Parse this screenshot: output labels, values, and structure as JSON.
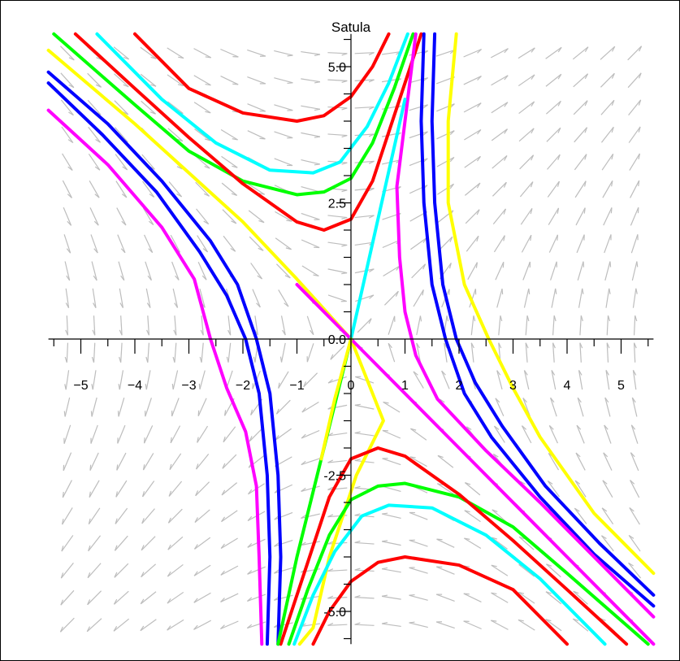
{
  "chart_data": {
    "type": "line",
    "title": "Satula",
    "xlabel": "",
    "ylabel": "",
    "xlim": [
      -5.6,
      5.6
    ],
    "ylim": [
      -5.6,
      5.6
    ],
    "grid": false,
    "x_ticks": [
      -5,
      -4,
      -3,
      -2,
      -1,
      0,
      1,
      2,
      3,
      4,
      5
    ],
    "x_tick_labels": [
      "−5",
      "−4",
      "−3",
      "−2",
      "−1",
      "0",
      "1",
      "2",
      "3",
      "4",
      "5"
    ],
    "y_ticks": [
      -5.0,
      -2.5,
      0.0,
      2.5,
      5.0
    ],
    "y_tick_labels": [
      "-5.0",
      "-2.5",
      "0.0",
      "2.5",
      "5.0"
    ],
    "colors": {
      "red": "#ff0000",
      "cyan": "#00ffff",
      "green": "#00ff00",
      "yellow": "#ffff00",
      "magenta": "#ff00ff",
      "blue": "#0000ff",
      "arrow": "#bdbdbd",
      "axis": "#000000"
    },
    "series": [
      {
        "color": "red",
        "points": [
          [
            -4.0,
            5.6
          ],
          [
            -3.0,
            4.6
          ],
          [
            -2.0,
            4.15
          ],
          [
            -1.0,
            4.0
          ],
          [
            -0.5,
            4.1
          ],
          [
            0.0,
            4.45
          ],
          [
            0.4,
            5.0
          ],
          [
            0.7,
            5.6
          ]
        ]
      },
      {
        "color": "cyan",
        "points": [
          [
            -4.7,
            5.6
          ],
          [
            -3.5,
            4.4
          ],
          [
            -2.5,
            3.6
          ],
          [
            -1.5,
            3.1
          ],
          [
            -0.7,
            3.05
          ],
          [
            -0.2,
            3.25
          ],
          [
            0.3,
            3.9
          ],
          [
            0.7,
            4.7
          ],
          [
            1.05,
            5.6
          ]
        ]
      },
      {
        "color": "green",
        "points": [
          [
            -5.5,
            5.6
          ],
          [
            -4.0,
            4.3
          ],
          [
            -3.0,
            3.45
          ],
          [
            -2.0,
            2.9
          ],
          [
            -1.0,
            2.65
          ],
          [
            -0.5,
            2.7
          ],
          [
            0.0,
            2.95
          ],
          [
            0.4,
            3.6
          ],
          [
            0.8,
            4.6
          ],
          [
            1.15,
            5.6
          ]
        ]
      },
      {
        "color": "red",
        "points": [
          [
            -5.1,
            5.6
          ],
          [
            -4.0,
            4.6
          ],
          [
            -3.0,
            3.7
          ],
          [
            -2.0,
            2.85
          ],
          [
            -1.0,
            2.15
          ],
          [
            -0.5,
            2.0
          ],
          [
            0.0,
            2.2
          ],
          [
            0.4,
            2.9
          ],
          [
            0.8,
            4.1
          ],
          [
            1.3,
            5.6
          ]
        ]
      },
      {
        "color": "yellow",
        "points": [
          [
            -5.6,
            5.3
          ],
          [
            -4.0,
            3.95
          ],
          [
            -3.0,
            3.05
          ],
          [
            -2.0,
            2.15
          ],
          [
            -1.0,
            1.1
          ],
          [
            -0.5,
            0.55
          ],
          [
            0.0,
            0.0
          ],
          [
            0.6,
            -1.5
          ],
          [
            0.1,
            -2.5
          ],
          [
            -0.4,
            -4.0
          ],
          [
            -0.7,
            -5.3
          ],
          [
            -0.95,
            -5.6
          ]
        ]
      },
      {
        "color": "blue",
        "points": [
          [
            -5.6,
            4.9
          ],
          [
            -4.5,
            3.95
          ],
          [
            -3.5,
            2.9
          ],
          [
            -2.6,
            1.8
          ],
          [
            -2.1,
            1.0
          ],
          [
            -1.75,
            0.0
          ],
          [
            -1.5,
            -1.0
          ],
          [
            -1.35,
            -2.5
          ],
          [
            -1.3,
            -4.0
          ],
          [
            -1.35,
            -5.6
          ]
        ]
      },
      {
        "color": "blue",
        "points": [
          [
            -5.6,
            4.7
          ],
          [
            -4.6,
            3.75
          ],
          [
            -3.6,
            2.7
          ],
          [
            -2.8,
            1.6
          ],
          [
            -2.3,
            0.8
          ],
          [
            -1.95,
            0.0
          ],
          [
            -1.7,
            -1.0
          ],
          [
            -1.55,
            -2.5
          ],
          [
            -1.5,
            -4.0
          ],
          [
            -1.55,
            -5.6
          ]
        ]
      },
      {
        "color": "magenta",
        "points": [
          [
            -5.6,
            4.2
          ],
          [
            -4.5,
            3.2
          ],
          [
            -3.5,
            2.05
          ],
          [
            -2.9,
            1.1
          ],
          [
            -2.6,
            0.0
          ],
          [
            -2.3,
            -0.9
          ],
          [
            -1.95,
            -1.7
          ],
          [
            -1.75,
            -2.7
          ],
          [
            -1.7,
            -4.0
          ],
          [
            -1.65,
            -5.6
          ]
        ]
      },
      {
        "color": "red",
        "points": [
          [
            4.0,
            -5.6
          ],
          [
            3.0,
            -4.6
          ],
          [
            2.0,
            -4.15
          ],
          [
            1.0,
            -4.0
          ],
          [
            0.5,
            -4.1
          ],
          [
            0.0,
            -4.45
          ],
          [
            -0.4,
            -5.0
          ],
          [
            -0.7,
            -5.6
          ]
        ]
      },
      {
        "color": "cyan",
        "points": [
          [
            4.7,
            -5.6
          ],
          [
            3.5,
            -4.4
          ],
          [
            2.5,
            -3.6
          ],
          [
            1.5,
            -3.1
          ],
          [
            0.7,
            -3.05
          ],
          [
            0.2,
            -3.25
          ],
          [
            -0.3,
            -3.9
          ],
          [
            -0.7,
            -4.7
          ],
          [
            -1.05,
            -5.6
          ]
        ]
      },
      {
        "color": "green",
        "points": [
          [
            5.5,
            -5.6
          ],
          [
            4.0,
            -4.3
          ],
          [
            3.0,
            -3.45
          ],
          [
            2.0,
            -2.9
          ],
          [
            1.0,
            -2.65
          ],
          [
            0.5,
            -2.7
          ],
          [
            0.0,
            -2.95
          ],
          [
            -0.4,
            -3.6
          ],
          [
            -0.8,
            -4.6
          ],
          [
            -1.15,
            -5.6
          ]
        ]
      },
      {
        "color": "red",
        "points": [
          [
            5.1,
            -5.6
          ],
          [
            4.0,
            -4.6
          ],
          [
            3.0,
            -3.7
          ],
          [
            2.0,
            -2.85
          ],
          [
            1.0,
            -2.15
          ],
          [
            0.5,
            -2.0
          ],
          [
            0.0,
            -2.2
          ],
          [
            -0.4,
            -2.9
          ],
          [
            -0.8,
            -4.1
          ],
          [
            -1.3,
            -5.6
          ]
        ]
      },
      {
        "color": "yellow",
        "points": [
          [
            5.6,
            -4.3
          ],
          [
            4.5,
            -3.2
          ],
          [
            3.5,
            -1.8
          ],
          [
            3.0,
            -0.9
          ],
          [
            2.55,
            0.0
          ],
          [
            2.1,
            1.0
          ],
          [
            1.8,
            2.5
          ],
          [
            1.8,
            4.0
          ],
          [
            1.95,
            5.6
          ]
        ]
      },
      {
        "color": "blue",
        "points": [
          [
            5.6,
            -4.9
          ],
          [
            4.5,
            -3.95
          ],
          [
            3.5,
            -2.9
          ],
          [
            2.6,
            -1.8
          ],
          [
            2.1,
            -1.0
          ],
          [
            1.75,
            0.0
          ],
          [
            1.5,
            1.0
          ],
          [
            1.35,
            2.5
          ],
          [
            1.3,
            4.0
          ],
          [
            1.35,
            5.6
          ]
        ]
      },
      {
        "color": "blue",
        "points": [
          [
            5.6,
            -4.7
          ],
          [
            4.6,
            -3.75
          ],
          [
            3.6,
            -2.7
          ],
          [
            2.8,
            -1.6
          ],
          [
            2.3,
            -0.8
          ],
          [
            1.95,
            0.0
          ],
          [
            1.7,
            1.0
          ],
          [
            1.55,
            2.5
          ],
          [
            1.5,
            4.0
          ],
          [
            1.55,
            5.6
          ]
        ]
      },
      {
        "color": "magenta",
        "points": [
          [
            5.6,
            -5.1
          ],
          [
            4.5,
            -4.0
          ],
          [
            3.5,
            -3.0
          ],
          [
            2.5,
            -2.05
          ],
          [
            1.6,
            -1.1
          ],
          [
            1.2,
            -0.3
          ],
          [
            1.0,
            0.5
          ],
          [
            0.9,
            1.5
          ],
          [
            0.85,
            2.8
          ],
          [
            1.0,
            4.0
          ],
          [
            1.2,
            5.6
          ]
        ]
      },
      {
        "color": "magenta",
        "points": [
          [
            5.6,
            -5.6
          ],
          [
            4.0,
            -4.0
          ],
          [
            2.0,
            -2.0
          ],
          [
            0.0,
            0.0
          ],
          [
            -1.0,
            1.0
          ]
        ]
      },
      {
        "color": "cyan",
        "points": [
          [
            0.0,
            0.0
          ],
          [
            0.5,
            2.2
          ],
          [
            1.0,
            4.4
          ]
        ]
      },
      {
        "color": "green",
        "points": [
          [
            0.0,
            0.0
          ],
          [
            -0.5,
            -2.0
          ],
          [
            -1.0,
            -4.0
          ],
          [
            -1.35,
            -5.6
          ]
        ]
      },
      {
        "color": "yellow",
        "points": [
          [
            0.0,
            0.0
          ],
          [
            -0.3,
            -1.1
          ],
          [
            -0.55,
            -2.2
          ]
        ]
      }
    ]
  }
}
